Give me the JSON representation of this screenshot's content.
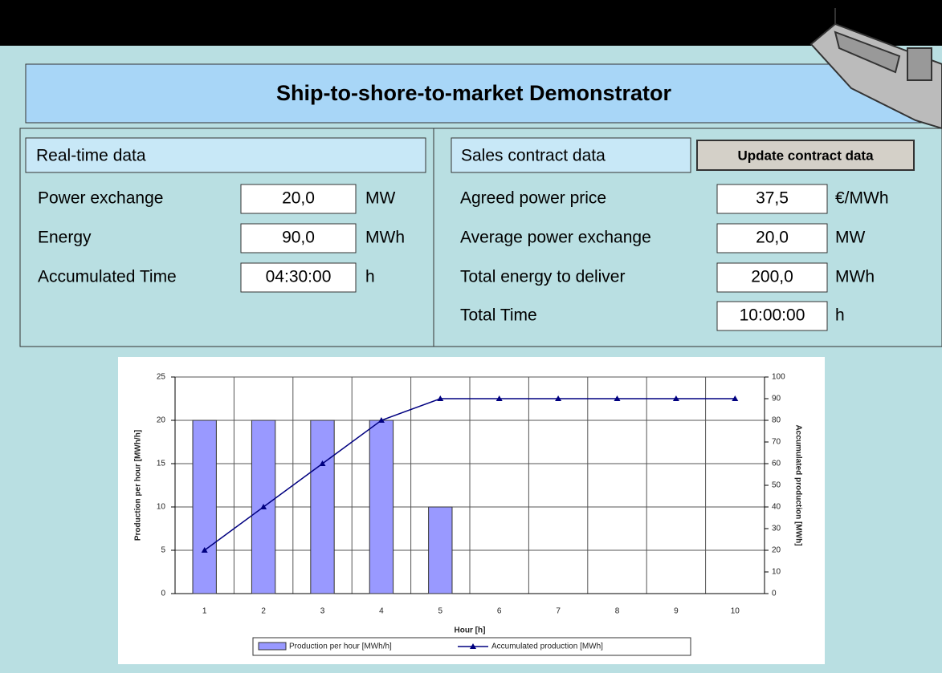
{
  "header": {
    "title": "Ship-to-shore-to-market Demonstrator"
  },
  "realtime": {
    "title": "Real-time data",
    "rows": [
      {
        "label": "Power exchange",
        "value": "20,0",
        "unit": "MW"
      },
      {
        "label": "Energy",
        "value": "90,0",
        "unit": "MWh"
      },
      {
        "label": "Accumulated Time",
        "value": "04:30:00",
        "unit": "h"
      }
    ]
  },
  "contract": {
    "title": "Sales contract data",
    "button": "Update contract data",
    "rows": [
      {
        "label": "Agreed power price",
        "value": "37,5",
        "unit": "€/MWh"
      },
      {
        "label": "Average power exchange",
        "value": "20,0",
        "unit": "MW"
      },
      {
        "label": "Total energy to deliver",
        "value": "200,0",
        "unit": "MWh"
      },
      {
        "label": "Total Time",
        "value": "10:00:00",
        "unit": "h"
      }
    ]
  },
  "chart_data": {
    "type": "bar",
    "x_label": "Hour [h]",
    "y_label": "Production per hour [MWh/h]",
    "y2_label": "Accumulated production [MWh]",
    "categories": [
      1,
      2,
      3,
      4,
      5,
      6,
      7,
      8,
      9,
      10
    ],
    "series": [
      {
        "name": "Production per hour [MWh/h]",
        "type": "bar",
        "color": "#9999ff",
        "values": [
          20,
          20,
          20,
          20,
          10,
          0,
          0,
          0,
          0,
          0
        ]
      },
      {
        "name": "Accumulated production [MWh]",
        "type": "line",
        "axis": "y2",
        "color": "#000080",
        "values": [
          20,
          40,
          60,
          80,
          90,
          90,
          90,
          90,
          90,
          90
        ]
      }
    ],
    "ylim": [
      0,
      25
    ],
    "yticks": [
      0,
      5,
      10,
      15,
      20,
      25
    ],
    "y2lim": [
      0,
      100
    ],
    "y2ticks": [
      0,
      10,
      20,
      30,
      40,
      50,
      60,
      70,
      80,
      90,
      100
    ],
    "grid": true,
    "legend": "bottom"
  }
}
